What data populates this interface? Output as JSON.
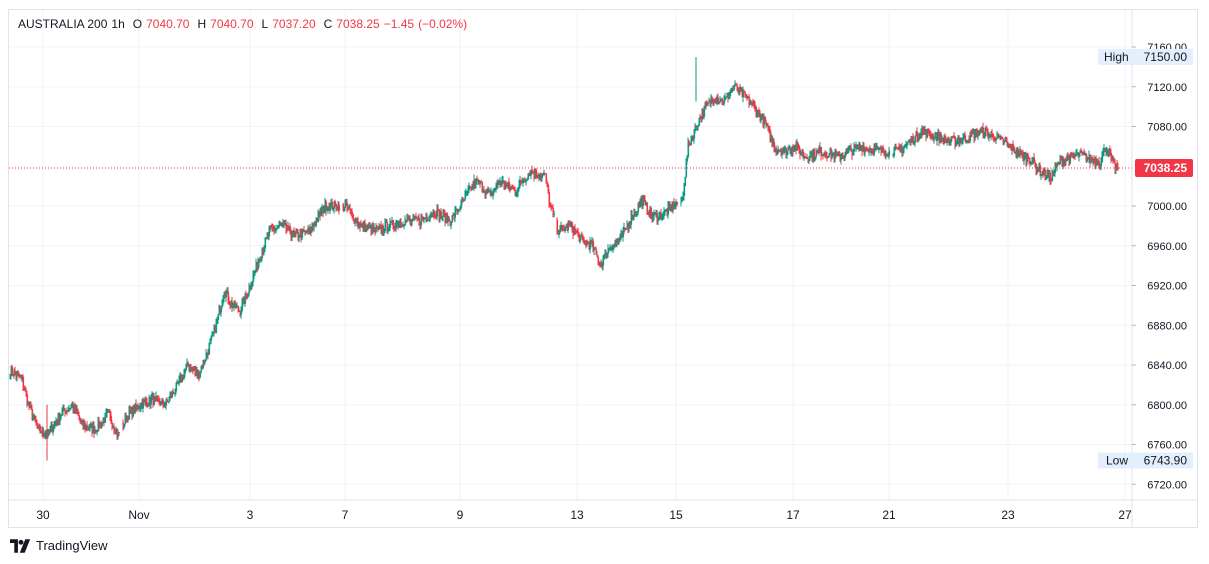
{
  "header": {
    "symbol": "AUSTRALIA 200",
    "interval": "1h",
    "open_label": "O",
    "open": "7040.70",
    "high_label": "H",
    "high": "7040.70",
    "low_label": "L",
    "low": "7037.20",
    "close_label": "C",
    "close": "7038.25",
    "change": "−1.45",
    "change_pct": "(−0.02%)"
  },
  "footer": {
    "brand": "TradingView"
  },
  "colors": {
    "up": "#089981",
    "down": "#f23645",
    "grid": "#f0f3fa",
    "text": "#131722",
    "badge": "#e3effd"
  },
  "chart_data": {
    "type": "candlestick",
    "y_ticks": [
      "7160.00",
      "7150.00",
      "7120.00",
      "7080.00",
      "7038.25",
      "7000.00",
      "6960.00",
      "6920.00",
      "6880.00",
      "6840.00",
      "6800.00",
      "6760.00",
      "6743.90",
      "6720.00"
    ],
    "y_tick_values": [
      7160,
      7120,
      7080,
      7000,
      6960,
      6920,
      6880,
      6840,
      6800,
      6760,
      6720
    ],
    "ylim": [
      6714,
      7167
    ],
    "x_tick_labels": [
      "30",
      "Nov",
      "3",
      "7",
      "9",
      "13",
      "15",
      "17",
      "21",
      "23",
      "27"
    ],
    "high_label": "High",
    "high_value": "7150.00",
    "high_price": 7150,
    "low_label": "Low",
    "low_value": "6743.90",
    "low_price": 6743.9,
    "last_price_label": "7038.25",
    "last_price": 7038.25,
    "keypoints": [
      [
        0,
        6835
      ],
      [
        12,
        6825
      ],
      [
        18,
        6800
      ],
      [
        28,
        6775
      ],
      [
        38,
        6770
      ],
      [
        50,
        6790
      ],
      [
        62,
        6800
      ],
      [
        72,
        6780
      ],
      [
        85,
        6775
      ],
      [
        98,
        6790
      ],
      [
        108,
        6770
      ],
      [
        118,
        6790
      ],
      [
        130,
        6800
      ],
      [
        142,
        6805
      ],
      [
        155,
        6800
      ],
      [
        168,
        6820
      ],
      [
        178,
        6840
      ],
      [
        188,
        6830
      ],
      [
        198,
        6855
      ],
      [
        206,
        6880
      ],
      [
        214,
        6915
      ],
      [
        222,
        6900
      ],
      [
        230,
        6895
      ],
      [
        240,
        6920
      ],
      [
        250,
        6950
      ],
      [
        260,
        6975
      ],
      [
        272,
        6980
      ],
      [
        285,
        6970
      ],
      [
        300,
        6975
      ],
      [
        315,
        7000
      ],
      [
        335,
        7000
      ],
      [
        350,
        6980
      ],
      [
        365,
        6975
      ],
      [
        378,
        6980
      ],
      [
        395,
        6985
      ],
      [
        410,
        6985
      ],
      [
        425,
        6995
      ],
      [
        440,
        6985
      ],
      [
        450,
        7000
      ],
      [
        465,
        7025
      ],
      [
        472,
        7020
      ],
      [
        480,
        7010
      ],
      [
        490,
        7025
      ],
      [
        505,
        7015
      ],
      [
        520,
        7035
      ],
      [
        535,
        7030
      ],
      [
        540,
        7000
      ],
      [
        548,
        6975
      ],
      [
        560,
        6980
      ],
      [
        572,
        6965
      ],
      [
        582,
        6960
      ],
      [
        590,
        6940
      ],
      [
        600,
        6960
      ],
      [
        610,
        6965
      ],
      [
        622,
        6990
      ],
      [
        632,
        7005
      ],
      [
        642,
        6990
      ],
      [
        652,
        6990
      ],
      [
        662,
        7000
      ],
      [
        672,
        7005
      ],
      [
        678,
        7060
      ],
      [
        688,
        7085
      ],
      [
        696,
        7100
      ],
      [
        704,
        7110
      ],
      [
        714,
        7105
      ],
      [
        724,
        7120
      ],
      [
        734,
        7110
      ],
      [
        744,
        7100
      ],
      [
        754,
        7085
      ],
      [
        764,
        7060
      ],
      [
        774,
        7055
      ],
      [
        785,
        7060
      ],
      [
        795,
        7050
      ],
      [
        810,
        7055
      ],
      [
        830,
        7050
      ],
      [
        850,
        7060
      ],
      [
        870,
        7055
      ],
      [
        888,
        7055
      ],
      [
        900,
        7065
      ],
      [
        912,
        7075
      ],
      [
        925,
        7070
      ],
      [
        940,
        7065
      ],
      [
        955,
        7068
      ],
      [
        970,
        7075
      ],
      [
        985,
        7070
      ],
      [
        1000,
        7060
      ],
      [
        1012,
        7050
      ],
      [
        1020,
        7048
      ],
      [
        1030,
        7035
      ],
      [
        1040,
        7028
      ],
      [
        1050,
        7045
      ],
      [
        1060,
        7048
      ],
      [
        1070,
        7052
      ],
      [
        1080,
        7047
      ],
      [
        1090,
        7045
      ],
      [
        1096,
        7060
      ],
      [
        1104,
        7040
      ],
      [
        1108,
        7038
      ]
    ]
  }
}
